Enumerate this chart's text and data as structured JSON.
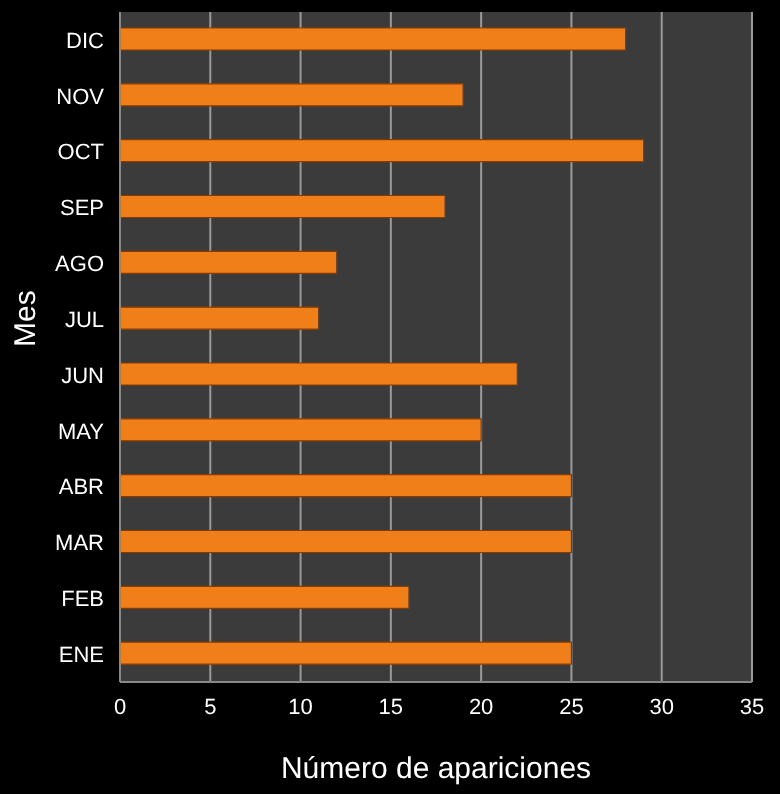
{
  "chart_data": {
    "type": "bar",
    "orientation": "horizontal",
    "xlabel": "Número de apariciones",
    "ylabel": "Mes",
    "categories": [
      "DIC",
      "NOV",
      "OCT",
      "SEP",
      "AGO",
      "JUL",
      "JUN",
      "MAY",
      "ABR",
      "MAR",
      "FEB",
      "ENE"
    ],
    "values": [
      28,
      19,
      29,
      18,
      12,
      11,
      22,
      20,
      25,
      25,
      16,
      25
    ],
    "color": "#f07f1a",
    "xlim": [
      0,
      35
    ],
    "xticks": [
      0,
      5,
      10,
      15,
      20,
      25,
      30,
      35
    ],
    "grid": "x"
  }
}
